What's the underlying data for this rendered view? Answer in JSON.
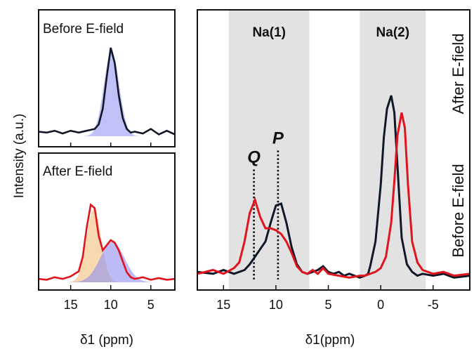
{
  "colors": {
    "before": "#101828",
    "after": "#e0141e",
    "fill_blue": "#8f8ef0",
    "fill_orange": "#f3c07a",
    "region": "#e2e2e2"
  },
  "chart_data": [
    {
      "type": "line",
      "panel": "left-top",
      "title": "Before E-field",
      "xlim": [
        19,
        2
      ],
      "x_ticks": [
        15,
        10,
        5
      ],
      "series": [
        {
          "name": "Before E-field",
          "x": [
            19,
            18,
            17,
            16,
            15,
            14,
            13,
            12,
            11.5,
            11,
            10.5,
            10,
            9.5,
            9,
            8.5,
            8,
            7.5,
            7,
            6,
            5,
            4,
            3,
            2
          ],
          "values": [
            0.05,
            0.04,
            0.06,
            0.03,
            0.06,
            0.04,
            0.06,
            0.08,
            0.13,
            0.3,
            0.65,
            0.97,
            0.8,
            0.45,
            0.2,
            0.08,
            0.04,
            0.05,
            0.03,
            0.08,
            0.02,
            0.06,
            0.02
          ]
        }
      ],
      "fill_components": [
        {
          "name": "blue",
          "center": 9.9,
          "width": 0.95,
          "height": 0.94
        }
      ]
    },
    {
      "type": "line",
      "panel": "left-bottom",
      "title": "After E-field",
      "xlabel": "δ1 (ppm)",
      "xlim": [
        19,
        2
      ],
      "x_ticks": [
        15,
        10,
        5
      ],
      "series": [
        {
          "name": "After E-field",
          "x": [
            19,
            18,
            17,
            16,
            15,
            14,
            13.5,
            13,
            12.5,
            12,
            11.5,
            11,
            10.5,
            10,
            9.5,
            9,
            8.5,
            8,
            7.5,
            7,
            6,
            5,
            4,
            3,
            2
          ],
          "values": [
            0.04,
            0.03,
            0.06,
            0.04,
            0.07,
            0.13,
            0.3,
            0.65,
            0.92,
            0.88,
            0.55,
            0.38,
            0.44,
            0.5,
            0.47,
            0.38,
            0.25,
            0.12,
            0.06,
            0.04,
            0.06,
            0.03,
            0.05,
            0.03,
            0.04
          ]
        }
      ],
      "fill_components": [
        {
          "name": "orange",
          "center": 12.1,
          "width": 0.9,
          "height": 0.88
        },
        {
          "name": "blue",
          "center": 9.8,
          "width": 1.5,
          "height": 0.48
        }
      ]
    },
    {
      "type": "line",
      "panel": "right",
      "xlabel": "δ1(ppm)",
      "ylabel": "Intensity (a.u.)",
      "xlim": [
        17.5,
        -8.5
      ],
      "x_ticks": [
        15,
        10,
        5,
        0,
        -5
      ],
      "regions": [
        {
          "label": "Na(1)",
          "from": 14.5,
          "to": 6.8
        },
        {
          "label": "Na(2)",
          "from": 2.0,
          "to": -4.3
        }
      ],
      "markers": [
        {
          "label": "Q",
          "x": 12.1,
          "y_top": 0.58
        },
        {
          "label": "P",
          "x": 9.8,
          "y_top": 0.68
        }
      ],
      "legend": [
        "After E-field",
        "Before E-field"
      ],
      "series": [
        {
          "name": "Before E-field",
          "x": [
            17.5,
            16,
            15,
            14,
            13,
            12.5,
            12,
            11.5,
            11,
            10.5,
            10,
            9.5,
            9,
            8.5,
            8,
            7.5,
            7,
            6.5,
            6,
            5.5,
            5,
            4.5,
            4,
            3.5,
            3,
            2.5,
            2,
            1.5,
            1.2,
            1,
            0.5,
            0,
            -0.3,
            -0.6,
            -1,
            -1.3,
            -1.6,
            -2,
            -2.5,
            -3,
            -3.5,
            -4,
            -5,
            -6,
            -7,
            -8.5
          ],
          "values": [
            0.04,
            0.03,
            0.05,
            0.03,
            0.05,
            0.08,
            0.12,
            0.16,
            0.2,
            0.3,
            0.39,
            0.4,
            0.3,
            0.17,
            0.08,
            0.04,
            0.03,
            0.04,
            0.05,
            0.07,
            0.04,
            0.03,
            0.04,
            0.02,
            0.03,
            0.02,
            0.01,
            0.02,
            0.03,
            0.07,
            0.2,
            0.5,
            0.75,
            0.9,
            0.97,
            0.88,
            0.6,
            0.22,
            0.08,
            0.04,
            0.02,
            0.03,
            0.02,
            0.03,
            0.01,
            0.02
          ]
        },
        {
          "name": "After E-field",
          "x": [
            17.5,
            16,
            15,
            14,
            13.5,
            13,
            12.5,
            12,
            11.5,
            11,
            10.5,
            10,
            9.5,
            9,
            8.5,
            8,
            7.5,
            7,
            6.5,
            6,
            5.5,
            5,
            4,
            3,
            2,
            1.5,
            1,
            0.5,
            0,
            -0.5,
            -1,
            -1.3,
            -1.6,
            -2,
            -2.3,
            -2.6,
            -3,
            -3.5,
            -4,
            -5,
            -6,
            -7,
            -8.5
          ],
          "values": [
            0.03,
            0.05,
            0.03,
            0.06,
            0.09,
            0.2,
            0.35,
            0.42,
            0.33,
            0.27,
            0.27,
            0.26,
            0.24,
            0.2,
            0.14,
            0.07,
            0.04,
            0.03,
            0.05,
            0.03,
            0.06,
            0.03,
            0.02,
            0.01,
            0.02,
            0.02,
            0.03,
            0.04,
            0.06,
            0.12,
            0.3,
            0.52,
            0.76,
            0.88,
            0.8,
            0.5,
            0.2,
            0.09,
            0.05,
            0.03,
            0.04,
            0.02,
            0.03
          ]
        }
      ]
    }
  ]
}
